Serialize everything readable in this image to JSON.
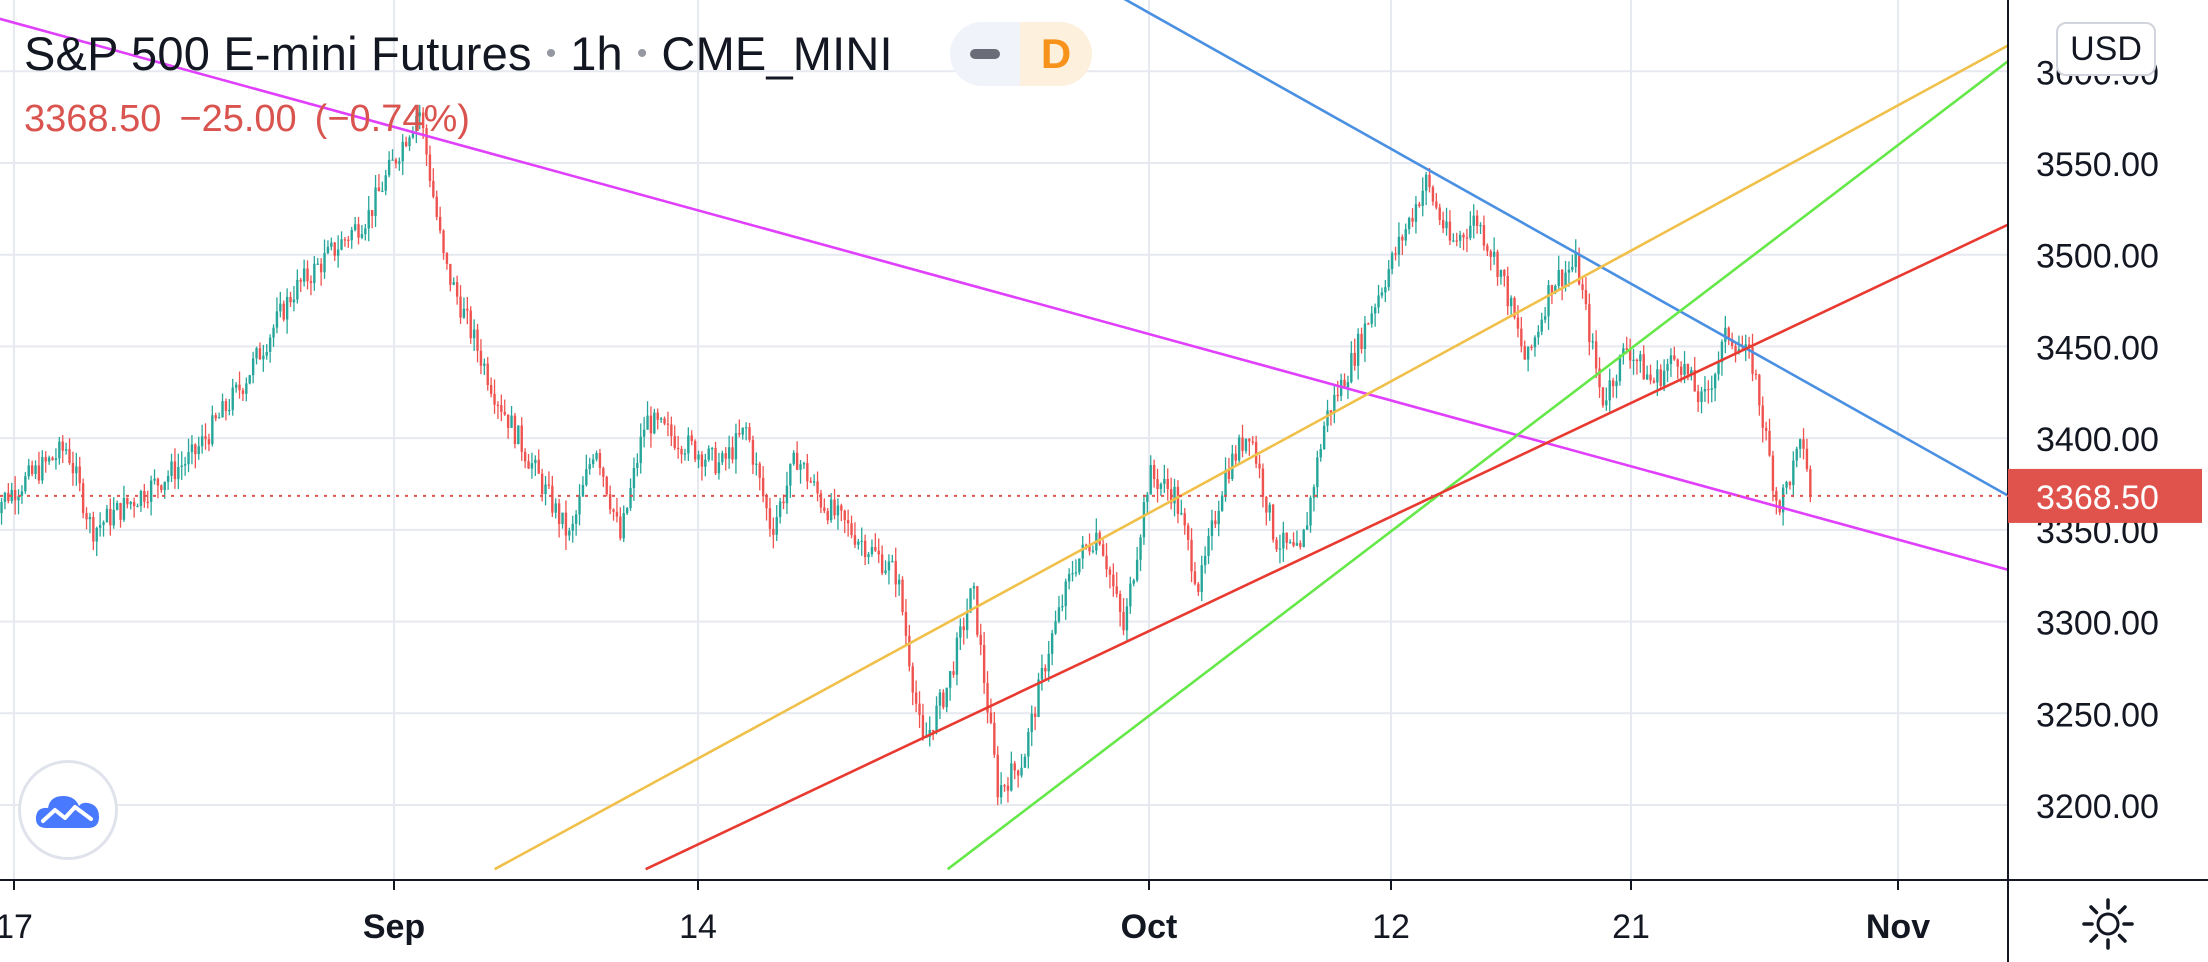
{
  "header": {
    "symbol": "S&P 500 E-mini Futures",
    "interval": "1h",
    "exchange": "CME_MINI",
    "badge": "D",
    "last_price": "3368.50",
    "change": "−25.00",
    "change_pct": "(−0.74%)"
  },
  "currency": "USD",
  "current_price_tag": "3368.50",
  "colors": {
    "up": "#26a69a",
    "down": "#ef5350",
    "price_tag": "#e0534c",
    "grid": "#e6e9f0"
  },
  "chart_data": {
    "type": "candlestick",
    "x_ticks": [
      "17",
      "Sep",
      "14",
      "Oct",
      "12",
      "21",
      "Nov"
    ],
    "y_ticks": [
      "3600.00",
      "3550.00",
      "3500.00",
      "3450.00",
      "3400.00",
      "3350.00",
      "3300.00",
      "3250.00",
      "3200.00"
    ],
    "ylim": [
      3160,
      3635
    ],
    "last_price": 3368.5,
    "price_path": [
      [
        "Aug 16",
        3362
      ],
      [
        "Aug 19",
        3395
      ],
      [
        "Aug 20",
        3350
      ],
      [
        "Aug 24",
        3390
      ],
      [
        "Aug 26",
        3430
      ],
      [
        "Aug 28",
        3480
      ],
      [
        "Aug 31",
        3522
      ],
      [
        "Sep 2",
        3580
      ],
      [
        "Sep 3",
        3495
      ],
      [
        "Sep 4",
        3460
      ],
      [
        "Sep 5",
        3425
      ],
      [
        "Sep 8",
        3345
      ],
      [
        "Sep 9",
        3398
      ],
      [
        "Sep 10",
        3345
      ],
      [
        "Sep 11",
        3410
      ],
      [
        "Sep 14",
        3385
      ],
      [
        "Sep 15",
        3405
      ],
      [
        "Sep 16",
        3350
      ],
      [
        "Sep 17",
        3390
      ],
      [
        "Sep 18",
        3365
      ],
      [
        "Sep 21",
        3325
      ],
      [
        "Sep 22",
        3232
      ],
      [
        "Sep 23",
        3265
      ],
      [
        "Sep 24",
        3318
      ],
      [
        "Sep 25",
        3208
      ],
      [
        "Sep 26",
        3225
      ],
      [
        "Sep 27",
        3285
      ],
      [
        "Sep 28",
        3330
      ],
      [
        "Sep 29",
        3350
      ],
      [
        "Sep 30",
        3295
      ],
      [
        "Oct 1",
        3380
      ],
      [
        "Oct 2",
        3370
      ],
      [
        "Oct 3",
        3318
      ],
      [
        "Oct 4",
        3380
      ],
      [
        "Oct 5",
        3405
      ],
      [
        "Oct 6",
        3345
      ],
      [
        "Oct 7",
        3335
      ],
      [
        "Oct 8",
        3410
      ],
      [
        "Oct 9",
        3440
      ],
      [
        "Oct 10",
        3475
      ],
      [
        "Oct 12",
        3540
      ],
      [
        "Oct 13",
        3505
      ],
      [
        "Oct 14",
        3520
      ],
      [
        "Oct 15",
        3490
      ],
      [
        "Oct 16",
        3440
      ],
      [
        "Oct 17",
        3485
      ],
      [
        "Oct 18",
        3495
      ],
      [
        "Oct 19",
        3420
      ],
      [
        "Oct 20",
        3450
      ],
      [
        "Oct 21",
        3430
      ],
      [
        "Oct 22",
        3445
      ],
      [
        "Oct 23",
        3418
      ],
      [
        "Oct 24",
        3458
      ],
      [
        "Oct 25",
        3440
      ],
      [
        "Oct 26",
        3362
      ],
      [
        "Oct 27",
        3398
      ],
      [
        "Oct 27b",
        3368.5
      ]
    ],
    "trendlines": [
      {
        "color": "#e040fb",
        "from": [
          "Aug 8",
          3660
        ],
        "to": [
          "Nov 5",
          3325
        ]
      },
      {
        "color": "#4a90e2",
        "from": [
          "Sep 28",
          3655
        ],
        "to": [
          "Nov 5",
          3362
        ]
      },
      {
        "color": "#f0c04a",
        "from": [
          "Sep 5",
          3165
        ],
        "to": [
          "Nov 6",
          3628
        ]
      },
      {
        "color": "#66e84a",
        "from": [
          "Sep 23",
          3165
        ],
        "to": [
          "Nov 6",
          3625
        ]
      },
      {
        "color": "#e83a30",
        "from": [
          "Sep 11",
          3165
        ],
        "to": [
          "Nov 5",
          3522
        ]
      }
    ]
  }
}
